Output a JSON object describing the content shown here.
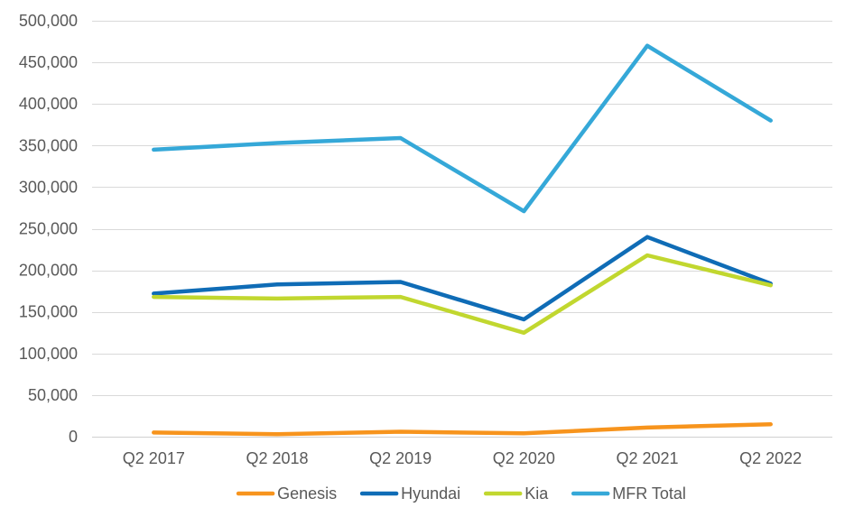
{
  "chart_data": {
    "type": "line",
    "title": "",
    "xlabel": "",
    "ylabel": "",
    "categories": [
      "Q2 2017",
      "Q2 2018",
      "Q2 2019",
      "Q2 2020",
      "Q2 2021",
      "Q2 2022"
    ],
    "ylim": [
      0,
      500000
    ],
    "yticks": [
      0,
      50000,
      100000,
      150000,
      200000,
      250000,
      300000,
      350000,
      400000,
      450000,
      500000
    ],
    "ytick_labels": [
      "0",
      "50,000",
      "100,000",
      "150,000",
      "200,000",
      "250,000",
      "300,000",
      "350,000",
      "400,000",
      "450,000",
      "500,000"
    ],
    "grid": true,
    "legend_position": "bottom",
    "series": [
      {
        "name": "Genesis",
        "color": "#F7941D",
        "values": [
          5000,
          3000,
          6000,
          4000,
          11000,
          15000
        ]
      },
      {
        "name": "Hyundai",
        "color": "#0F6CB6",
        "values": [
          172000,
          183000,
          186000,
          141000,
          240000,
          184000
        ]
      },
      {
        "name": "Kia",
        "color": "#C1D72F",
        "values": [
          168000,
          166000,
          168000,
          125000,
          218000,
          182000
        ]
      },
      {
        "name": "MFR Total",
        "color": "#35A8D8",
        "values": [
          345000,
          353000,
          359000,
          271000,
          470000,
          380000
        ]
      }
    ]
  }
}
